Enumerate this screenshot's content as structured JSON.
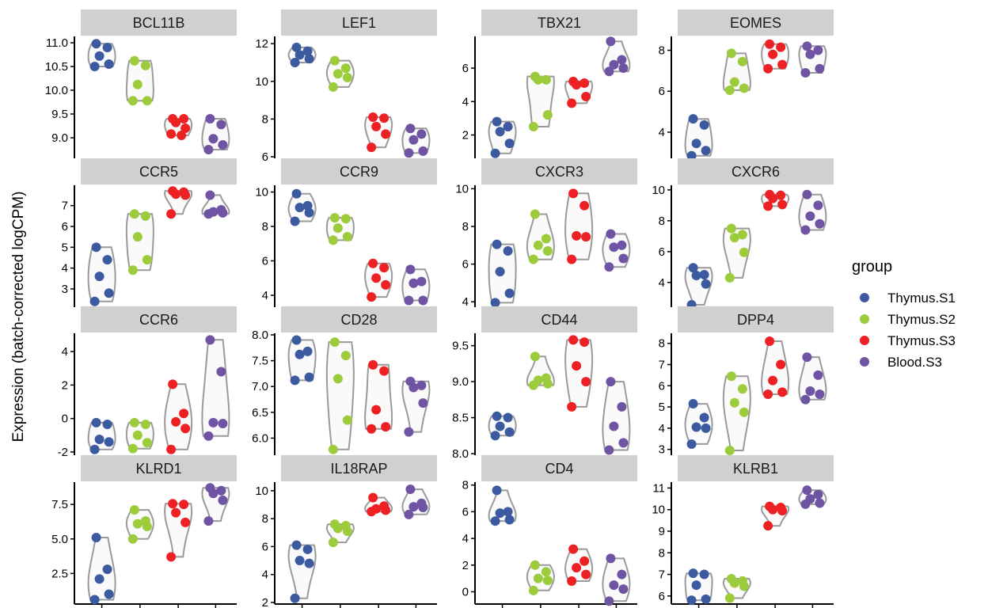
{
  "chart_data": {
    "type": "violin",
    "ylabel": "Expression (batch-corrected logCPM)",
    "xlabel": "",
    "legend": {
      "title": "group",
      "position": "right",
      "entries": [
        {
          "name": "Thymus.S1",
          "color": "#3C5AA0"
        },
        {
          "name": "Thymus.S2",
          "color": "#9CCB3B"
        },
        {
          "name": "Thymus.S3",
          "color": "#ED2024"
        },
        {
          "name": "Blood.S3",
          "color": "#6E54A3"
        }
      ]
    },
    "colors": {
      "strip_fill": "#D0D0D0",
      "violin_stroke": "#9A9A9A",
      "violin_fill": "#FAFAFA",
      "axis": "#000000"
    },
    "panels": [
      {
        "title": "BCL11B",
        "ylim": [
          8.6,
          11.1
        ],
        "yticks": [
          9.0,
          9.5,
          10.0,
          10.5,
          11.0
        ],
        "tick_labels": [
          "9.0",
          "9.5",
          "10.0",
          "10.5",
          "11.0"
        ],
        "groups": [
          [
            10.98,
            10.9,
            10.72,
            10.55,
            10.5
          ],
          [
            10.62,
            10.52,
            10.12,
            9.78,
            9.78
          ],
          [
            9.4,
            9.4,
            9.32,
            9.2,
            9.08,
            9.05
          ],
          [
            9.4,
            9.28,
            8.98,
            8.85,
            8.75
          ]
        ]
      },
      {
        "title": "LEF1",
        "ylim": [
          6,
          12.3
        ],
        "yticks": [
          6,
          8,
          10,
          12
        ],
        "tick_labels": [
          "6",
          "8",
          "10",
          "12"
        ],
        "groups": [
          [
            11.8,
            11.6,
            11.4,
            11.2,
            11.0
          ],
          [
            11.1,
            10.7,
            10.4,
            10.2,
            9.7
          ],
          [
            8.1,
            8.05,
            7.6,
            7.2,
            6.5
          ],
          [
            7.5,
            7.2,
            6.9,
            6.3,
            6.2
          ]
        ]
      },
      {
        "title": "TBX21",
        "ylim": [
          0.7,
          7.8
        ],
        "yticks": [
          2,
          4,
          6
        ],
        "tick_labels": [
          "2",
          "4",
          "6"
        ],
        "groups": [
          [
            2.8,
            2.5,
            2.2,
            1.5,
            0.9
          ],
          [
            5.5,
            5.3,
            5.3,
            3.2,
            2.5
          ],
          [
            5.2,
            5.1,
            5.0,
            4.3,
            3.9
          ],
          [
            7.6,
            6.5,
            6.2,
            6.0,
            5.8
          ]
        ]
      },
      {
        "title": "EOMES",
        "ylim": [
          2.8,
          8.6
        ],
        "yticks": [
          4,
          6,
          8
        ],
        "tick_labels": [
          "4",
          "6",
          "8"
        ],
        "groups": [
          [
            4.65,
            4.35,
            3.45,
            3.1,
            2.85
          ],
          [
            7.85,
            7.45,
            6.45,
            6.15,
            6.05
          ],
          [
            8.3,
            8.15,
            7.8,
            7.3,
            7.1
          ],
          [
            8.2,
            8.0,
            7.8,
            7.1,
            6.9
          ]
        ]
      },
      {
        "title": "CCR5",
        "ylim": [
          2.2,
          7.9
        ],
        "yticks": [
          3,
          4,
          5,
          6,
          7
        ],
        "tick_labels": [
          "3",
          "4",
          "5",
          "6",
          "7"
        ],
        "groups": [
          [
            5.0,
            4.4,
            3.6,
            2.8,
            2.4
          ],
          [
            6.6,
            6.5,
            5.5,
            4.4,
            3.9
          ],
          [
            7.7,
            7.65,
            7.55,
            7.5,
            6.6
          ],
          [
            7.5,
            6.8,
            6.7,
            6.65,
            6.6
          ]
        ]
      },
      {
        "title": "CCR9",
        "ylim": [
          3.4,
          10.3
        ],
        "yticks": [
          4,
          6,
          8,
          10
        ],
        "tick_labels": [
          "4",
          "6",
          "8",
          "10"
        ],
        "groups": [
          [
            9.9,
            9.2,
            9.1,
            8.8,
            8.3
          ],
          [
            8.5,
            8.45,
            7.9,
            7.4,
            7.2
          ],
          [
            5.85,
            5.6,
            5.0,
            4.6,
            3.9
          ],
          [
            5.5,
            4.8,
            4.7,
            3.7,
            3.7
          ]
        ]
      },
      {
        "title": "CXCR3",
        "ylim": [
          3.8,
          10.1
        ],
        "yticks": [
          4,
          6,
          8,
          10
        ],
        "tick_labels": [
          "4",
          "6",
          "8",
          "10"
        ],
        "groups": [
          [
            7.05,
            6.7,
            5.6,
            4.45,
            3.95
          ],
          [
            8.65,
            7.35,
            7.0,
            6.7,
            6.25
          ],
          [
            9.75,
            9.1,
            7.5,
            7.45,
            6.25
          ],
          [
            7.6,
            7.0,
            6.9,
            6.3,
            5.85
          ]
        ]
      },
      {
        "title": "CXCR6",
        "ylim": [
          2.5,
          10.2
        ],
        "yticks": [
          4,
          6,
          8,
          10
        ],
        "tick_labels": [
          "4",
          "6",
          "8",
          "10"
        ],
        "groups": [
          [
            4.95,
            4.5,
            4.45,
            3.9,
            2.55
          ],
          [
            7.5,
            7.1,
            6.9,
            5.95,
            4.3
          ],
          [
            9.7,
            9.65,
            9.45,
            9.05,
            8.95
          ],
          [
            9.7,
            9.0,
            8.3,
            7.8,
            7.4
          ]
        ]
      },
      {
        "title": "CCR6",
        "ylim": [
          -2.1,
          5.0
        ],
        "yticks": [
          -2,
          0,
          2,
          4
        ],
        "tick_labels": [
          "-2",
          "0",
          "2",
          "4"
        ],
        "groups": [
          [
            -0.25,
            -0.35,
            -1.25,
            -1.4,
            -1.85
          ],
          [
            -0.25,
            -0.35,
            -1.0,
            -1.45,
            -1.8
          ],
          [
            2.05,
            0.3,
            -0.2,
            -0.6,
            -1.85
          ],
          [
            4.7,
            2.8,
            -0.25,
            -0.3,
            -1.05
          ]
        ]
      },
      {
        "title": "CD28",
        "ylim": [
          5.7,
          8.0
        ],
        "yticks": [
          6.0,
          6.5,
          7.0,
          7.5,
          8.0
        ],
        "tick_labels": [
          "6.0",
          "6.5",
          "7.0",
          "7.5",
          "8.0"
        ],
        "groups": [
          [
            7.9,
            7.68,
            7.62,
            7.18,
            7.12
          ],
          [
            7.86,
            7.6,
            7.15,
            6.35,
            5.78
          ],
          [
            7.42,
            7.3,
            6.55,
            6.22,
            6.18
          ],
          [
            7.1,
            7.02,
            6.98,
            6.68,
            6.12
          ]
        ]
      },
      {
        "title": "CD44",
        "ylim": [
          8.0,
          9.65
        ],
        "yticks": [
          8.0,
          8.5,
          9.0,
          9.5
        ],
        "tick_labels": [
          "8.0",
          "8.5",
          "9.0",
          "9.5"
        ],
        "groups": [
          [
            8.52,
            8.5,
            8.38,
            8.3,
            8.25
          ],
          [
            9.35,
            9.05,
            9.02,
            8.97,
            8.95
          ],
          [
            9.58,
            9.55,
            9.22,
            9.0,
            8.65
          ],
          [
            9.0,
            8.65,
            8.38,
            8.15,
            8.05
          ]
        ]
      },
      {
        "title": "DPP4",
        "ylim": [
          2.8,
          8.4
        ],
        "yticks": [
          3,
          4,
          5,
          6,
          7,
          8
        ],
        "tick_labels": [
          "3",
          "4",
          "5",
          "6",
          "7",
          "8"
        ],
        "groups": [
          [
            5.15,
            4.5,
            4.05,
            4.0,
            3.25
          ],
          [
            6.45,
            5.85,
            5.2,
            4.75,
            2.95
          ],
          [
            8.1,
            7.0,
            6.25,
            5.7,
            5.6
          ],
          [
            7.35,
            6.5,
            5.75,
            5.6,
            5.35
          ]
        ]
      },
      {
        "title": "KLRD1",
        "ylim": [
          0.4,
          9.0
        ],
        "yticks": [
          2.5,
          5.0,
          7.5
        ],
        "tick_labels": [
          "2.5",
          "5.0",
          "7.5"
        ],
        "groups": [
          [
            5.1,
            2.8,
            2.1,
            1.0,
            0.6
          ],
          [
            7.1,
            6.3,
            6.1,
            5.9,
            5.0
          ],
          [
            7.55,
            7.5,
            6.9,
            6.2,
            3.7
          ],
          [
            8.7,
            8.5,
            8.3,
            7.8,
            6.3
          ]
        ]
      },
      {
        "title": "IL18RAP",
        "ylim": [
          2.0,
          10.5
        ],
        "yticks": [
          2,
          4,
          6,
          8,
          10
        ],
        "tick_labels": [
          "2",
          "4",
          "6",
          "8",
          "10"
        ],
        "groups": [
          [
            6.1,
            5.8,
            5.0,
            4.8,
            2.3
          ],
          [
            7.6,
            7.5,
            7.3,
            7.1,
            6.3
          ],
          [
            9.5,
            8.9,
            8.7,
            8.6,
            8.5
          ],
          [
            10.1,
            9.1,
            8.85,
            8.8,
            8.3
          ]
        ]
      },
      {
        "title": "CD4",
        "ylim": [
          -0.8,
          8.1
        ],
        "yticks": [
          0,
          2,
          4,
          6,
          8
        ],
        "tick_labels": [
          "0",
          "2",
          "4",
          "6",
          "8"
        ],
        "groups": [
          [
            7.6,
            6.0,
            5.9,
            5.4,
            5.3
          ],
          [
            2.0,
            1.5,
            1.0,
            0.85,
            0.1
          ],
          [
            3.2,
            2.3,
            1.8,
            1.3,
            0.8
          ],
          [
            2.5,
            1.3,
            0.5,
            0.2,
            -0.7
          ]
        ]
      },
      {
        "title": "KLRB1",
        "ylim": [
          5.7,
          11.2
        ],
        "yticks": [
          6,
          7,
          8,
          9,
          10,
          11
        ],
        "tick_labels": [
          "6",
          "7",
          "8",
          "9",
          "10",
          "11"
        ],
        "groups": [
          [
            7.05,
            7.0,
            6.5,
            5.85,
            5.8
          ],
          [
            6.8,
            6.7,
            6.6,
            6.45,
            5.9
          ],
          [
            10.15,
            10.1,
            10.0,
            9.95,
            9.25
          ],
          [
            10.9,
            10.7,
            10.5,
            10.3,
            10.25
          ]
        ]
      }
    ]
  }
}
